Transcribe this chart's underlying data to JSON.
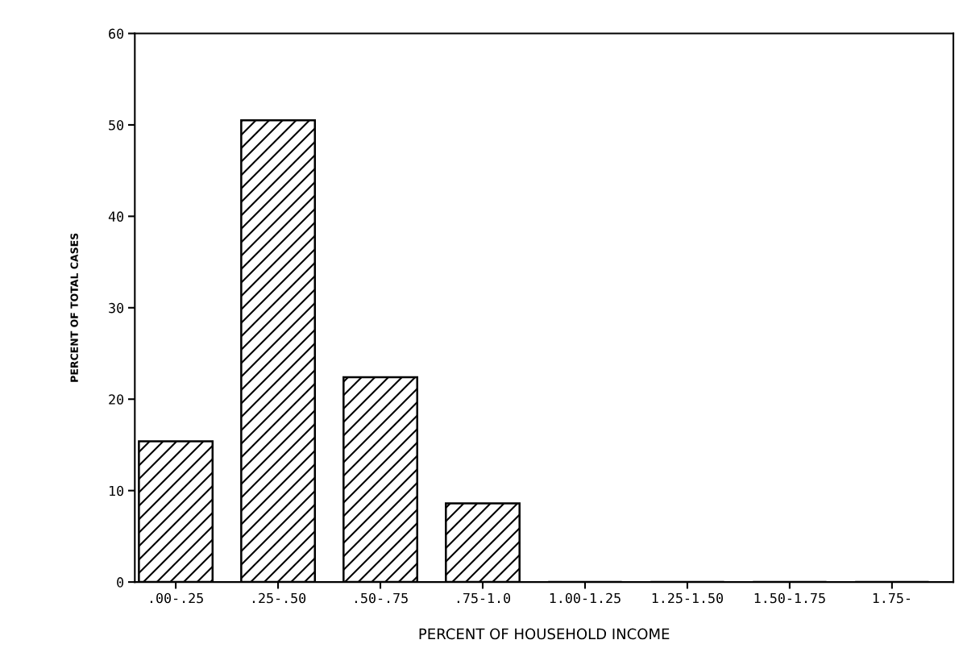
{
  "chart_data": {
    "type": "bar",
    "xlabel": "PERCENT OF HOUSEHOLD INCOME",
    "ylabel": "PERCENT OF TOTAL CASES",
    "categories": [
      ".00-.25",
      ".25-.50",
      ".50-.75",
      ".75-1.0",
      "1.00-1.25",
      "1.25-1.50",
      "1.50-1.75",
      "1.75-"
    ],
    "values": [
      15.4,
      50.5,
      22.4,
      8.6,
      0,
      0,
      0,
      0
    ],
    "color": "#000000",
    "ylim": [
      0,
      60
    ],
    "yticks": [
      0,
      10,
      20,
      30,
      40,
      50,
      60
    ],
    "grid": false,
    "legend": false
  }
}
